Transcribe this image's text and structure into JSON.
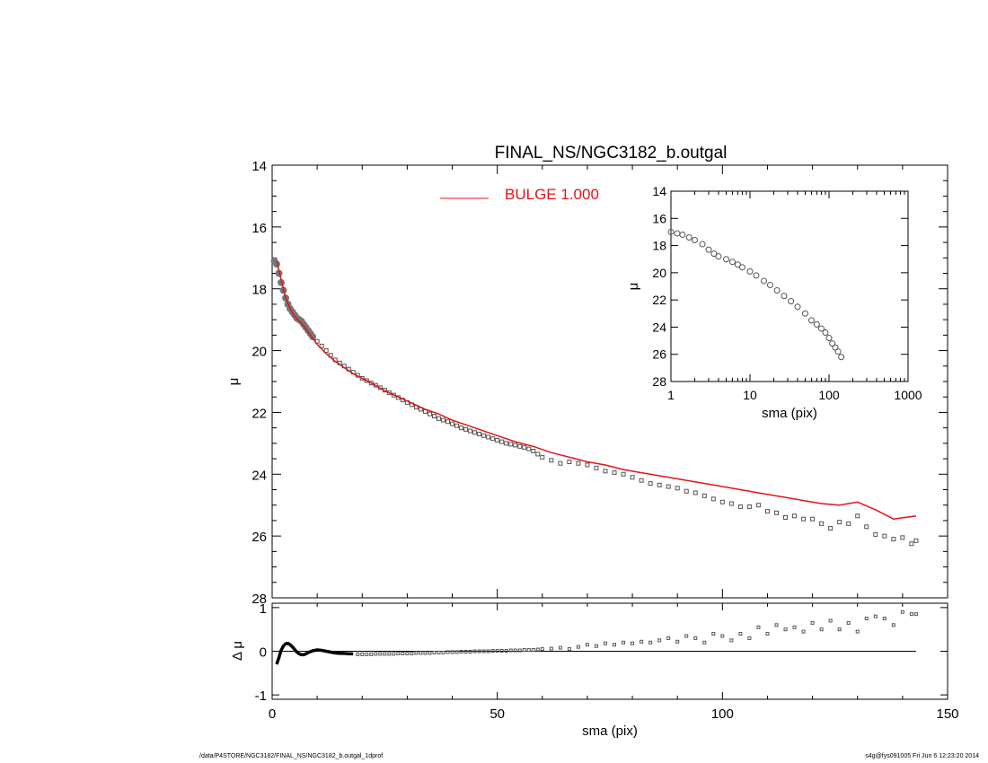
{
  "title": "FINAL_NS/NGC3182_b.outgal",
  "footer": {
    "left": "/data/P4STORE/NGC3182/FINAL_NS/NGC3182_b.outgal_1dprof",
    "right": "s4g@fys091005  Fri Jun  6 12:23:20 2014"
  },
  "colors": {
    "model": "#e0141b",
    "data": "#555555",
    "axes": "#000000"
  },
  "chart_data": [
    {
      "id": "main",
      "type": "scatter",
      "xlabel": "",
      "ylabel": "μ",
      "xlim": [
        0,
        150
      ],
      "ylim": [
        28,
        14
      ],
      "yticks": [
        14,
        16,
        18,
        20,
        22,
        24,
        26,
        28
      ],
      "legend": {
        "label": "BULGE  1.000",
        "placement": "top-center"
      },
      "series": [
        {
          "name": "BULGE  1.000",
          "kind": "line",
          "x": [
            1,
            2,
            3,
            4,
            5,
            6,
            7,
            8,
            9,
            10,
            12,
            14,
            16,
            18,
            20,
            22,
            25,
            28,
            31,
            34,
            37,
            40,
            43,
            46,
            50,
            54,
            58,
            62,
            66,
            70,
            74,
            78,
            82,
            86,
            90,
            94,
            98,
            102,
            106,
            110,
            114,
            118,
            122,
            126,
            130,
            134,
            138,
            143
          ],
          "y": [
            17.1,
            17.7,
            18.3,
            18.65,
            18.9,
            19.05,
            19.2,
            19.4,
            19.6,
            19.8,
            20.1,
            20.35,
            20.55,
            20.75,
            20.9,
            21.05,
            21.3,
            21.5,
            21.7,
            21.9,
            22.05,
            22.25,
            22.4,
            22.55,
            22.75,
            22.95,
            23.1,
            23.3,
            23.45,
            23.6,
            23.7,
            23.85,
            23.95,
            24.05,
            24.15,
            24.25,
            24.35,
            24.45,
            24.55,
            24.65,
            24.75,
            24.85,
            24.95,
            25.0,
            24.9,
            25.15,
            25.45,
            25.35
          ]
        },
        {
          "name": "",
          "kind": "points",
          "x": [
            0.5,
            1,
            1.5,
            2,
            2.5,
            3,
            3.5,
            4,
            4.5,
            5,
            5.5,
            6,
            6.5,
            7,
            7.5,
            8,
            8.5,
            9,
            10,
            11,
            12,
            13,
            14,
            15,
            16,
            17,
            18,
            19,
            20,
            21,
            22,
            23,
            24,
            25,
            26,
            27,
            28,
            29,
            30,
            31,
            32,
            33,
            34,
            35,
            36,
            37,
            38,
            39,
            40,
            41,
            42,
            43,
            44,
            45,
            46,
            47,
            48,
            49,
            50,
            51,
            52,
            53,
            54,
            55,
            56,
            57,
            58,
            59,
            60,
            62,
            64,
            66,
            68,
            70,
            72,
            74,
            76,
            78,
            80,
            82,
            84,
            86,
            88,
            90,
            92,
            94,
            96,
            98,
            100,
            102,
            104,
            106,
            108,
            110,
            112,
            114,
            116,
            118,
            120,
            122,
            124,
            126,
            128,
            130,
            132,
            134,
            136,
            138,
            140,
            142,
            143
          ],
          "y": [
            17.1,
            17.2,
            17.5,
            17.8,
            18.05,
            18.3,
            18.5,
            18.65,
            18.75,
            18.85,
            18.95,
            19.0,
            19.05,
            19.15,
            19.25,
            19.35,
            19.45,
            19.55,
            19.7,
            19.85,
            20.0,
            20.15,
            20.3,
            20.4,
            20.5,
            20.6,
            20.7,
            20.8,
            20.9,
            20.97,
            21.05,
            21.12,
            21.2,
            21.28,
            21.36,
            21.44,
            21.52,
            21.6,
            21.68,
            21.75,
            21.83,
            21.9,
            21.97,
            22.05,
            22.12,
            22.2,
            22.25,
            22.3,
            22.37,
            22.43,
            22.5,
            22.55,
            22.6,
            22.65,
            22.7,
            22.75,
            22.8,
            22.85,
            22.9,
            22.95,
            23.0,
            23.03,
            23.06,
            23.1,
            23.13,
            23.18,
            23.25,
            23.35,
            23.45,
            23.55,
            23.65,
            23.6,
            23.65,
            23.7,
            23.8,
            23.9,
            23.95,
            24.0,
            24.1,
            24.2,
            24.3,
            24.35,
            24.4,
            24.45,
            24.55,
            24.6,
            24.7,
            24.8,
            24.9,
            24.95,
            25.05,
            25.05,
            25.0,
            25.2,
            25.25,
            25.4,
            25.35,
            25.45,
            25.45,
            25.6,
            25.75,
            25.55,
            25.6,
            25.35,
            25.7,
            25.95,
            26.0,
            26.1,
            26.05,
            26.25,
            26.15
          ]
        }
      ]
    },
    {
      "id": "inset",
      "type": "scatter",
      "xscale": "log",
      "xlabel": "sma (pix)",
      "ylabel": "μ",
      "xlim": [
        1,
        1000
      ],
      "ylim": [
        28,
        14
      ],
      "xticks": [
        1,
        10,
        100,
        1000
      ],
      "xticklabels": [
        "1",
        "10",
        "100",
        "1000"
      ],
      "yticks": [
        14,
        16,
        18,
        20,
        22,
        24,
        26,
        28
      ],
      "series": [
        {
          "name": "",
          "kind": "points",
          "x": [
            1.0,
            1.2,
            1.4,
            1.7,
            2.0,
            2.5,
            3.0,
            3.5,
            4.0,
            5.0,
            6.0,
            7.0,
            8.0,
            10.0,
            12.0,
            15.0,
            18.0,
            22.0,
            27.0,
            33.0,
            40.0,
            50.0,
            60.0,
            70.0,
            80.0,
            90.0,
            100.0,
            110.0,
            120.0,
            130.0,
            143.0
          ],
          "y": [
            17.0,
            17.1,
            17.2,
            17.4,
            17.6,
            17.9,
            18.3,
            18.6,
            18.8,
            19.0,
            19.2,
            19.4,
            19.6,
            19.9,
            20.2,
            20.6,
            20.9,
            21.3,
            21.7,
            22.1,
            22.5,
            23.0,
            23.5,
            23.8,
            24.1,
            24.4,
            24.8,
            25.2,
            25.5,
            25.8,
            26.2
          ]
        }
      ]
    },
    {
      "id": "residual",
      "type": "scatter",
      "xlabel": "sma (pix)",
      "ylabel": "Δ μ",
      "xlim": [
        0,
        150
      ],
      "ylim": [
        -1.1,
        1.1
      ],
      "xticks": [
        0,
        50,
        100,
        150
      ],
      "yticks": [
        1,
        0,
        -1
      ],
      "reference_line": 0,
      "series": [
        {
          "name": "",
          "kind": "curve",
          "x": [
            1.0,
            1.5,
            2.0,
            2.5,
            3.0,
            3.5,
            4.0,
            4.5,
            5.0,
            5.5,
            6.0,
            6.5,
            7.0,
            7.5,
            8.0,
            9.0,
            10.0,
            11.0,
            12.0,
            13.0,
            14.0,
            15.0,
            16.0,
            17.0,
            18.0
          ],
          "y": [
            -0.3,
            -0.15,
            0.02,
            0.12,
            0.17,
            0.18,
            0.15,
            0.1,
            0.04,
            -0.02,
            -0.06,
            -0.08,
            -0.08,
            -0.06,
            -0.03,
            0.01,
            0.03,
            0.02,
            0.0,
            -0.02,
            -0.04,
            -0.05,
            -0.05,
            -0.06,
            -0.06
          ]
        },
        {
          "name": "",
          "kind": "points",
          "x": [
            19,
            20,
            21,
            22,
            23,
            24,
            25,
            26,
            27,
            28,
            29,
            30,
            31,
            32,
            33,
            34,
            35,
            36,
            37,
            38,
            39,
            40,
            41,
            42,
            43,
            44,
            45,
            46,
            47,
            48,
            49,
            50,
            51,
            52,
            53,
            54,
            55,
            56,
            57,
            58,
            59,
            60,
            62,
            64,
            66,
            68,
            70,
            72,
            74,
            76,
            78,
            80,
            82,
            84,
            86,
            88,
            90,
            92,
            94,
            96,
            98,
            100,
            102,
            104,
            106,
            108,
            110,
            112,
            114,
            116,
            118,
            120,
            122,
            124,
            126,
            128,
            130,
            132,
            134,
            136,
            138,
            140,
            142,
            143
          ],
          "y": [
            -0.07,
            -0.07,
            -0.07,
            -0.07,
            -0.06,
            -0.06,
            -0.06,
            -0.06,
            -0.06,
            -0.05,
            -0.05,
            -0.05,
            -0.05,
            -0.04,
            -0.04,
            -0.04,
            -0.04,
            -0.03,
            -0.03,
            -0.03,
            -0.02,
            -0.02,
            -0.02,
            -0.01,
            -0.01,
            -0.01,
            0.0,
            0.0,
            0.0,
            0.0,
            0.01,
            0.01,
            0.01,
            0.01,
            0.02,
            0.02,
            0.02,
            0.03,
            0.03,
            0.03,
            0.04,
            0.05,
            0.06,
            0.08,
            0.05,
            0.1,
            0.15,
            0.12,
            0.18,
            0.15,
            0.2,
            0.18,
            0.22,
            0.2,
            0.25,
            0.3,
            0.22,
            0.35,
            0.3,
            0.2,
            0.4,
            0.35,
            0.25,
            0.4,
            0.3,
            0.55,
            0.4,
            0.6,
            0.5,
            0.55,
            0.45,
            0.65,
            0.5,
            0.7,
            0.5,
            0.65,
            0.45,
            0.75,
            0.8,
            0.75,
            0.6,
            0.9,
            0.85,
            0.85
          ]
        }
      ]
    }
  ]
}
